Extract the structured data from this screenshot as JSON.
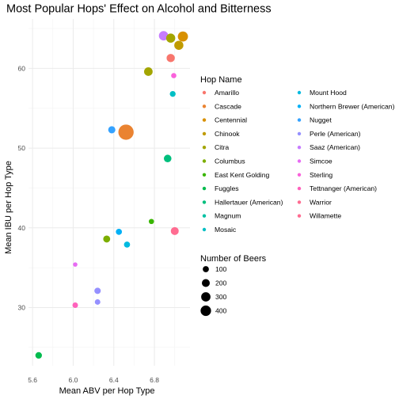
{
  "chart_data": {
    "type": "scatter",
    "title": "Most Popular Hops' Effect on Alcohol and Bitterness",
    "xlabel": "Mean ABV per Hop Type",
    "ylabel": "Mean IBU per Hop Type",
    "xlim": [
      5.56,
      7.15
    ],
    "ylim": [
      22.7,
      66.2
    ],
    "x_ticks": [
      5.6,
      6.0,
      6.4,
      6.8
    ],
    "x_tick_labels": [
      "5.6",
      "6.0",
      "6.4",
      "6.8"
    ],
    "y_ticks": [
      30,
      40,
      50,
      60
    ],
    "y_tick_labels": [
      "30",
      "40",
      "50",
      "60"
    ],
    "grid": true,
    "color_legend": {
      "title": "Hop Name",
      "placement": "right",
      "entries": [
        {
          "name": "Amarillo",
          "color": "#F8766D"
        },
        {
          "name": "Cascade",
          "color": "#EA8331"
        },
        {
          "name": "Centennial",
          "color": "#D89000"
        },
        {
          "name": "Chinook",
          "color": "#C09B00"
        },
        {
          "name": "Citra",
          "color": "#A3A500"
        },
        {
          "name": "Columbus",
          "color": "#7CAE00"
        },
        {
          "name": "East Kent Golding",
          "color": "#39B600"
        },
        {
          "name": "Fuggles",
          "color": "#00BB4E"
        },
        {
          "name": "Hallertauer (American)",
          "color": "#00BF7D"
        },
        {
          "name": "Magnum",
          "color": "#00C1A3"
        },
        {
          "name": "Mosaic",
          "color": "#00BFC4"
        },
        {
          "name": "Mount Hood",
          "color": "#00BAE0"
        },
        {
          "name": "Northern Brewer (American)",
          "color": "#00B0F6"
        },
        {
          "name": "Nugget",
          "color": "#35A2FF"
        },
        {
          "name": "Perle (American)",
          "color": "#9590FF"
        },
        {
          "name": "Saaz (American)",
          "color": "#C77CFF"
        },
        {
          "name": "Simcoe",
          "color": "#E76BF3"
        },
        {
          "name": "Sterling",
          "color": "#FA62DB"
        },
        {
          "name": "Tettnanger (American)",
          "color": "#FF62BC"
        },
        {
          "name": "Warrior",
          "color": "#FF6C91"
        },
        {
          "name": "Willamette",
          "color": "#FF6C91"
        }
      ]
    },
    "size_legend": {
      "title": "Number of Beers",
      "placement": "right",
      "entries": [
        {
          "label": "100",
          "value": 100
        },
        {
          "label": "200",
          "value": 200
        },
        {
          "label": "300",
          "value": 300
        },
        {
          "label": "400",
          "value": 400
        }
      ]
    },
    "points": [
      {
        "x": 6.52,
        "y": 52.0,
        "n": 450,
        "color": "#EA8331"
      },
      {
        "x": 7.08,
        "y": 64.0,
        "n": 160,
        "color": "#D89000"
      },
      {
        "x": 6.89,
        "y": 64.1,
        "n": 130,
        "color": "#C77CFF"
      },
      {
        "x": 6.96,
        "y": 63.8,
        "n": 120,
        "color": "#A3A500"
      },
      {
        "x": 7.04,
        "y": 62.9,
        "n": 120,
        "color": "#C09B00"
      },
      {
        "x": 6.96,
        "y": 61.3,
        "n": 90,
        "color": "#F8766D"
      },
      {
        "x": 6.74,
        "y": 59.6,
        "n": 100,
        "color": "#A3A500"
      },
      {
        "x": 6.99,
        "y": 59.1,
        "n": 20,
        "color": "#FA62DB"
      },
      {
        "x": 6.98,
        "y": 56.8,
        "n": 30,
        "color": "#00BFC4"
      },
      {
        "x": 6.38,
        "y": 52.3,
        "n": 60,
        "color": "#35A2FF"
      },
      {
        "x": 6.93,
        "y": 48.7,
        "n": 70,
        "color": "#00BF7D"
      },
      {
        "x": 6.77,
        "y": 40.8,
        "n": 20,
        "color": "#39B600"
      },
      {
        "x": 7.0,
        "y": 39.6,
        "n": 80,
        "color": "#FF6C91"
      },
      {
        "x": 6.45,
        "y": 39.5,
        "n": 35,
        "color": "#00B0F6"
      },
      {
        "x": 6.33,
        "y": 38.6,
        "n": 55,
        "color": "#7CAE00"
      },
      {
        "x": 6.53,
        "y": 37.9,
        "n": 35,
        "color": "#00BAE0"
      },
      {
        "x": 6.02,
        "y": 35.4,
        "n": 10,
        "color": "#E76BF3"
      },
      {
        "x": 6.24,
        "y": 32.1,
        "n": 40,
        "color": "#9590FF"
      },
      {
        "x": 6.24,
        "y": 30.7,
        "n": 25,
        "color": "#9590FF"
      },
      {
        "x": 6.02,
        "y": 30.3,
        "n": 25,
        "color": "#FF62BC"
      },
      {
        "x": 5.66,
        "y": 24.0,
        "n": 45,
        "color": "#00BB4E"
      }
    ]
  }
}
